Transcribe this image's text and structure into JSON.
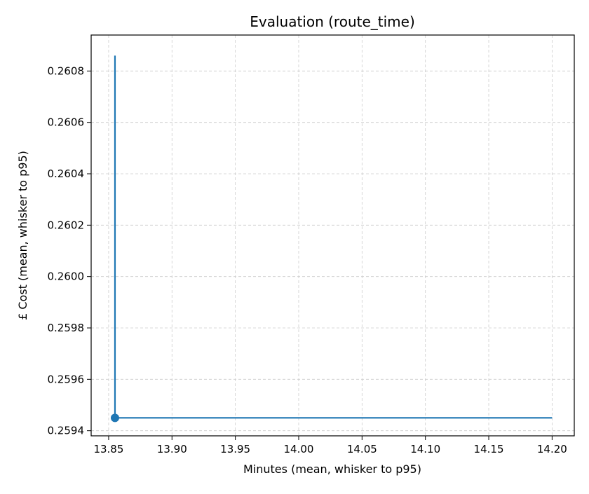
{
  "chart_data": {
    "type": "scatter",
    "title": "Evaluation (route_time)",
    "xlabel": "Minutes (mean, whisker to p95)",
    "ylabel": "£ Cost (mean, whisker to p95)",
    "xlim": [
      13.8362,
      14.2175
    ],
    "ylim": [
      0.25938,
      0.26094
    ],
    "x_ticks": [
      "13.85",
      "13.90",
      "13.95",
      "14.00",
      "14.05",
      "14.10",
      "14.15",
      "14.20"
    ],
    "y_ticks": [
      "0.2594",
      "0.2596",
      "0.2598",
      "0.2600",
      "0.2602",
      "0.2604",
      "0.2606",
      "0.2608"
    ],
    "grid": true,
    "series": [
      {
        "point": {
          "x": 13.855,
          "y": 0.25945
        },
        "x_whisker_to": 14.2,
        "y_whisker_to": 0.26086
      }
    ],
    "colors": {
      "series": "#1f77b4",
      "grid": "#cccccc",
      "axes": "#000000"
    }
  }
}
